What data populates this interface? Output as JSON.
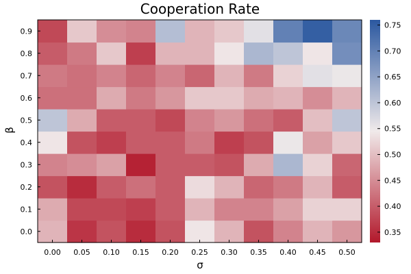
{
  "chart_data": {
    "type": "heatmap",
    "title": "Cooperation Rate",
    "xlabel": "σ",
    "ylabel": "β",
    "x": [
      "0.00",
      "0.05",
      "0.10",
      "0.15",
      "0.20",
      "0.25",
      "0.30",
      "0.35",
      "0.40",
      "0.45",
      "0.50"
    ],
    "y": [
      "0.0",
      "0.1",
      "0.2",
      "0.3",
      "0.4",
      "0.5",
      "0.6",
      "0.7",
      "0.8",
      "0.9"
    ],
    "values": [
      [
        0.49,
        0.36,
        0.39,
        0.35,
        0.39,
        0.54,
        0.49,
        0.39,
        0.44,
        0.49,
        0.46
      ],
      [
        0.48,
        0.38,
        0.38,
        0.37,
        0.4,
        0.49,
        0.44,
        0.44,
        0.47,
        0.52,
        0.52
      ],
      [
        0.39,
        0.35,
        0.4,
        0.42,
        0.4,
        0.53,
        0.49,
        0.41,
        0.43,
        0.49,
        0.4
      ],
      [
        0.44,
        0.45,
        0.47,
        0.34,
        0.4,
        0.4,
        0.39,
        0.48,
        0.62,
        0.52,
        0.41
      ],
      [
        0.54,
        0.39,
        0.37,
        0.4,
        0.4,
        0.43,
        0.37,
        0.39,
        0.55,
        0.47,
        0.51
      ],
      [
        0.6,
        0.48,
        0.4,
        0.4,
        0.38,
        0.44,
        0.46,
        0.42,
        0.4,
        0.5,
        0.6
      ],
      [
        0.42,
        0.42,
        0.48,
        0.43,
        0.46,
        0.51,
        0.51,
        0.48,
        0.49,
        0.45,
        0.49
      ],
      [
        0.43,
        0.42,
        0.44,
        0.41,
        0.44,
        0.41,
        0.49,
        0.43,
        0.52,
        0.56,
        0.55
      ],
      [
        0.4,
        0.43,
        0.51,
        0.37,
        0.49,
        0.49,
        0.54,
        0.62,
        0.6,
        0.54,
        0.68
      ],
      [
        0.38,
        0.51,
        0.45,
        0.44,
        0.61,
        0.49,
        0.51,
        0.56,
        0.7,
        0.75,
        0.69
      ]
    ],
    "colorbar": {
      "min": 0.33,
      "max": 0.76,
      "ticks": [
        "0.35",
        "0.40",
        "0.45",
        "0.50",
        "0.55",
        "0.60",
        "0.65",
        "0.70",
        "0.75"
      ],
      "colormap": [
        "#b2182b",
        "#f0eaea",
        "#2b58a0"
      ],
      "colormap_mid": 0.545
    },
    "grid": false,
    "legend": "colorbar-right"
  }
}
